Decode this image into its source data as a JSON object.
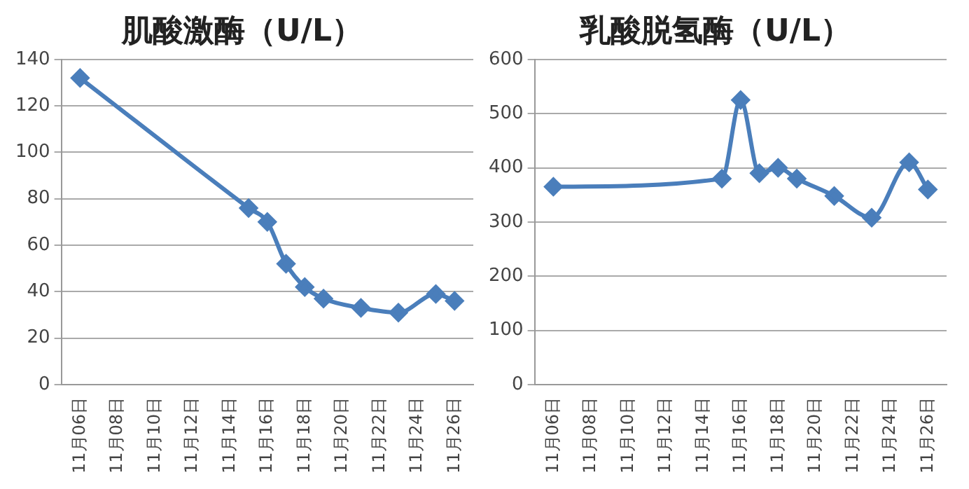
{
  "chart_data": [
    {
      "type": "line",
      "title": "肌酸激酶（U/L）",
      "x": [
        "--11-06",
        "--11-15",
        "--11-16",
        "--11-17",
        "--11-18",
        "--11-19",
        "--11-21",
        "--11-23",
        "--11-25",
        "--11-26"
      ],
      "series": [
        {
          "color": "#4a7ebb",
          "values": [
            132,
            76,
            70,
            52,
            42,
            37,
            33,
            31,
            39,
            36
          ]
        }
      ],
      "xlim": [
        "--11-05",
        "--11-27"
      ],
      "xticks": [
        {
          "value": "--11-06",
          "label": "11月06日"
        },
        {
          "value": "--11-08",
          "label": "11月08日"
        },
        {
          "value": "--11-10",
          "label": "11月10日"
        },
        {
          "value": "--11-12",
          "label": "11月12日"
        },
        {
          "value": "--11-14",
          "label": "11月14日"
        },
        {
          "value": "--11-16",
          "label": "11月16日"
        },
        {
          "value": "--11-18",
          "label": "11月18日"
        },
        {
          "value": "--11-20",
          "label": "11月20日"
        },
        {
          "value": "--11-22",
          "label": "11月22日"
        },
        {
          "value": "--11-24",
          "label": "11月24日"
        },
        {
          "value": "--11-26",
          "label": "11月26日"
        }
      ],
      "ylim": [
        0,
        140
      ],
      "yticks": [
        0,
        20,
        40,
        60,
        80,
        100,
        120,
        140
      ],
      "grid": "y",
      "legend": false,
      "marker": "diamond",
      "line_style": "solid"
    },
    {
      "type": "line",
      "title": "乳酸脱氢酶（U/L）",
      "x": [
        "--11-06",
        "--11-15",
        "--11-16",
        "--11-17",
        "--11-18",
        "--11-19",
        "--11-21",
        "--11-23",
        "--11-25",
        "--11-26"
      ],
      "series": [
        {
          "color": "#4a7ebb",
          "values": [
            365,
            380,
            525,
            390,
            400,
            380,
            348,
            308,
            410,
            360
          ]
        }
      ],
      "xlim": [
        "--11-05",
        "--11-27"
      ],
      "xticks": [
        {
          "value": "--11-06",
          "label": "11月06日"
        },
        {
          "value": "--11-08",
          "label": "11月08日"
        },
        {
          "value": "--11-10",
          "label": "11月10日"
        },
        {
          "value": "--11-12",
          "label": "11月12日"
        },
        {
          "value": "--11-14",
          "label": "11月14日"
        },
        {
          "value": "--11-16",
          "label": "11月16日"
        },
        {
          "value": "--11-18",
          "label": "11月18日"
        },
        {
          "value": "--11-20",
          "label": "11月20日"
        },
        {
          "value": "--11-22",
          "label": "11月22日"
        },
        {
          "value": "--11-24",
          "label": "11月24日"
        },
        {
          "value": "--11-26",
          "label": "11月26日"
        }
      ],
      "ylim": [
        0,
        600
      ],
      "yticks": [
        0,
        100,
        200,
        300,
        400,
        500,
        600
      ],
      "grid": "y",
      "legend": false,
      "marker": "diamond",
      "line_style": "solid"
    }
  ]
}
